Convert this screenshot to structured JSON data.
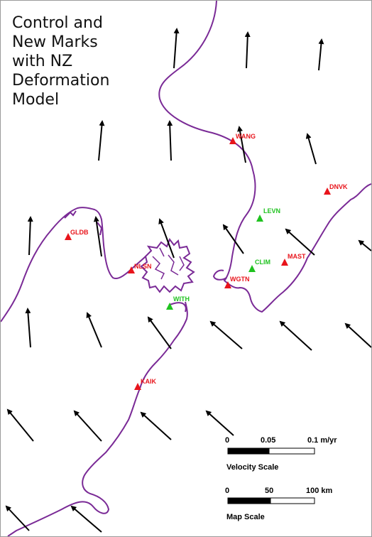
{
  "title": "Control and\nNew Marks\nwith NZ\nDeformation\nModel",
  "colors": {
    "coastline": "#7a2a96",
    "land_fill": "#ffffff",
    "control_mark": "#e8141b",
    "new_mark": "#1fc21f",
    "vector": "#000000"
  },
  "stations": [
    {
      "name": "WANG",
      "type": "control"
    },
    {
      "name": "DNVK",
      "type": "control"
    },
    {
      "name": "GLDB",
      "type": "control"
    },
    {
      "name": "NLSN",
      "type": "control"
    },
    {
      "name": "MAST",
      "type": "control"
    },
    {
      "name": "WGTN",
      "type": "control"
    },
    {
      "name": "KAIK",
      "type": "control"
    },
    {
      "name": "LEVN",
      "type": "new"
    },
    {
      "name": "CLIM",
      "type": "new"
    },
    {
      "name": "WITH",
      "type": "new"
    }
  ],
  "velocity_scale": {
    "ticks": [
      "0",
      "0.05",
      "0.1 m/yr"
    ],
    "caption": "Velocity Scale"
  },
  "map_scale": {
    "ticks": [
      "0",
      "50",
      "100 km"
    ],
    "caption": "Map Scale"
  }
}
